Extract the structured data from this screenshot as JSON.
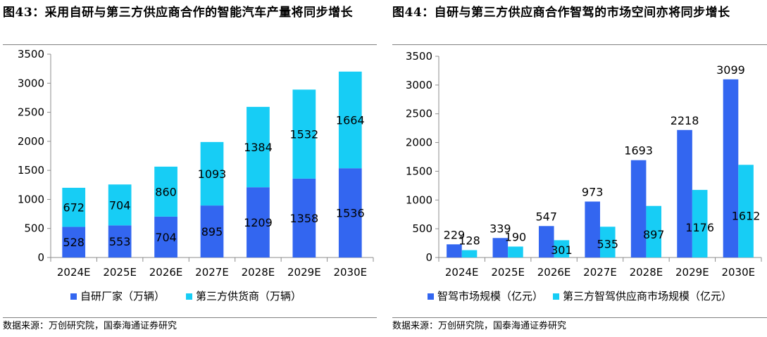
{
  "charts": [
    {
      "title": "图43：采用自研与第三方供应商合作的智能汽车产量将同步增长",
      "source": "数据来源：万创研究院，国泰海通证券研究",
      "chart_data": {
        "type": "bar",
        "stacked": true,
        "categories": [
          "2024E",
          "2025E",
          "2026E",
          "2027E",
          "2028E",
          "2029E",
          "2030E"
        ],
        "ylim": [
          0,
          3500
        ],
        "yticks": [
          "0",
          "500",
          "1000",
          "1500",
          "2000",
          "2500",
          "3000",
          "3500"
        ],
        "grid": false,
        "legend_position": "bottom",
        "series": [
          {
            "name": "自研厂家（万辆）",
            "color": "#3366f0",
            "values": [
              528,
              553,
              704,
              895,
              1209,
              1358,
              1536
            ],
            "labels": [
              "528",
              "553",
              "704",
              "895",
              "1209",
              "1358",
              "1536"
            ]
          },
          {
            "name": "第三方供货商（万辆）",
            "color": "#17cdf5",
            "values": [
              672,
              704,
              860,
              1093,
              1384,
              1532,
              1664
            ],
            "labels": [
              "672",
              "704",
              "860",
              "1093",
              "1384",
              "1532",
              "1664"
            ]
          }
        ]
      }
    },
    {
      "title": "图44：自研与第三方供应商合作智驾的市场空间亦将同步增长",
      "source": "数据来源：万创研究院，国泰海通证券研究",
      "chart_data": {
        "type": "bar",
        "stacked": false,
        "categories": [
          "2024E",
          "2025E",
          "2026E",
          "2027E",
          "2028E",
          "2029E",
          "2030E"
        ],
        "ylim": [
          0,
          3500
        ],
        "yticks": [
          "0",
          "500",
          "1000",
          "1500",
          "2000",
          "2500",
          "3000",
          "3500"
        ],
        "grid": false,
        "legend_position": "bottom",
        "series": [
          {
            "name": "智驾市场规模（亿元）",
            "color": "#3366f0",
            "values": [
              229,
              339,
              547,
              973,
              1693,
              2218,
              3099
            ],
            "labels": [
              "229",
              "339",
              "547",
              "973",
              "1693",
              "2218",
              "3099"
            ]
          },
          {
            "name": "第三方智驾供应商市场规模（亿元）",
            "color": "#17cdf5",
            "values": [
              128,
              190,
              301,
              535,
              897,
              1176,
              1612
            ],
            "labels": [
              "128",
              "190",
              "301",
              "535",
              "897",
              "1176",
              "1612"
            ]
          }
        ]
      }
    }
  ]
}
